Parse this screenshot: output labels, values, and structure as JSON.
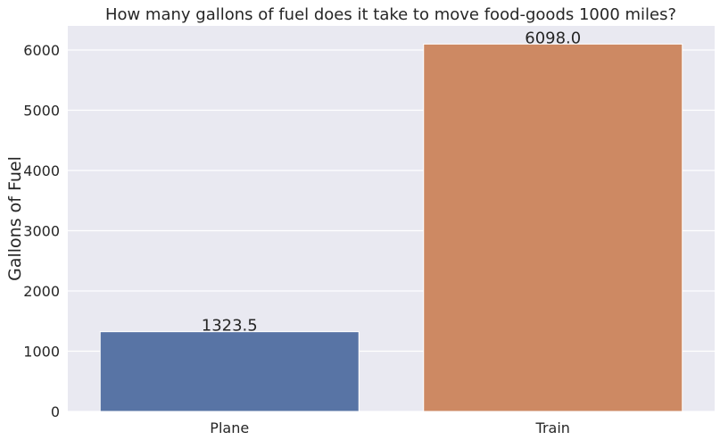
{
  "chart_data": {
    "type": "bar",
    "title": "How many gallons of fuel does it take to move food-goods 1000 miles?",
    "xlabel": "",
    "ylabel": "Gallons of Fuel",
    "categories": [
      "Plane",
      "Train"
    ],
    "values": [
      1323.5,
      6098.0
    ],
    "value_labels": [
      "1323.5",
      "6098.0"
    ],
    "ylim": [
      0,
      6400
    ],
    "yticks": [
      0,
      1000,
      2000,
      3000,
      4000,
      5000,
      6000
    ],
    "ytick_labels": [
      "0",
      "1000",
      "2000",
      "3000",
      "4000",
      "5000",
      "6000"
    ],
    "colors": [
      "#5874a5",
      "#cd8963"
    ],
    "background": "#e9e9f1",
    "grid": true
  }
}
